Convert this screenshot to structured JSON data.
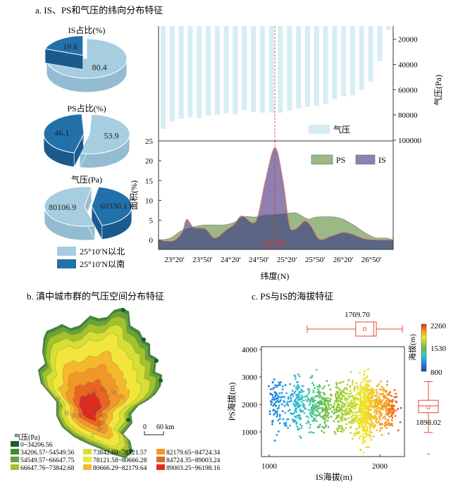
{
  "panel_a": {
    "title": "a. IS、PS和气压的纬向分布特征",
    "pies": [
      {
        "title": "IS占比(%)",
        "values": [
          80.4,
          19.6
        ],
        "labels": [
          "80.4",
          "19.6"
        ]
      },
      {
        "title": "PS占比(%)",
        "values": [
          53.9,
          46.1
        ],
        "labels": [
          "53.9",
          "46.1"
        ]
      },
      {
        "title": "气压(Pa)",
        "values": [
          80106.9,
          60330.1
        ],
        "labels": [
          "80106.9",
          "60330.1"
        ]
      }
    ],
    "pie_legend": [
      "25°10′N以北",
      "25°10′N以南"
    ],
    "colors": {
      "north": "#a6cde0",
      "south": "#2271ab",
      "pressure_bar": "#d6edf4",
      "ps": "#9cb985",
      "is": "#8e80b0",
      "overlap": "#5a6683",
      "divider": "#e8321e"
    }
  },
  "chart_data": [
    {
      "type": "bar",
      "orientation": "hanging-from-top",
      "series": [
        {
          "name": "气压",
          "values": [
            91000,
            85200,
            83100,
            81800,
            82600,
            80500,
            80000,
            78700,
            79600,
            76200,
            77700,
            78100,
            78100,
            78100,
            76400,
            74900,
            73600,
            72900,
            71400,
            67500,
            65300,
            64300,
            60200,
            53500,
            37300,
            12700
          ]
        }
      ],
      "ylabel": "气压(Pa)",
      "ylim": [
        10000,
        100000
      ],
      "yticks": [
        "20000",
        "40000",
        "60000",
        "80000",
        "100000"
      ],
      "y_axis_side": "right",
      "y_inverted": true,
      "legend_placement": "bottom-right"
    },
    {
      "type": "area",
      "xlabel": "纬度(N)",
      "ylabel": "面积(%)",
      "xlim": [
        23.1,
        27.27
      ],
      "ylim": [
        -2.5,
        25
      ],
      "xticks": [
        {
          "value": 23.333,
          "label": "23°20′"
        },
        {
          "value": 23.833,
          "label": "23°50′"
        },
        {
          "value": 24.333,
          "label": "24°20′"
        },
        {
          "value": 24.833,
          "label": "24°50′"
        },
        {
          "value": 25.333,
          "label": "25°20′"
        },
        {
          "value": 25.833,
          "label": "25°50′"
        },
        {
          "value": 26.333,
          "label": "26°20′"
        },
        {
          "value": 26.833,
          "label": "26°50′"
        }
      ],
      "yticks": [
        "0",
        "5",
        "10",
        "15",
        "20",
        "25"
      ],
      "divider": {
        "value": 25.167,
        "label": "25°10′"
      },
      "legend_placement": "top-right",
      "series": [
        {
          "name": "PS",
          "points": [
            [
              23.1,
              0
            ],
            [
              23.31,
              0.5
            ],
            [
              23.52,
              2.5
            ],
            [
              23.72,
              3.3
            ],
            [
              23.93,
              3.8
            ],
            [
              24.25,
              3.8
            ],
            [
              24.45,
              4.5
            ],
            [
              24.61,
              5.9
            ],
            [
              24.82,
              5.8
            ],
            [
              24.97,
              6.3
            ],
            [
              25.18,
              6.5
            ],
            [
              25.44,
              6.8
            ],
            [
              25.55,
              6.8
            ],
            [
              25.76,
              5.3
            ],
            [
              25.91,
              5.8
            ],
            [
              26.28,
              5.7
            ],
            [
              26.54,
              4.0
            ],
            [
              26.75,
              2.0
            ],
            [
              26.95,
              0.6
            ],
            [
              27.16,
              0.5
            ],
            [
              27.27,
              0
            ]
          ]
        },
        {
          "name": "IS",
          "points": [
            [
              23.1,
              0
            ],
            [
              23.36,
              -0.2
            ],
            [
              23.52,
              2.0
            ],
            [
              23.6,
              5.2
            ],
            [
              23.72,
              3.2
            ],
            [
              23.93,
              2.8
            ],
            [
              24.1,
              0.5
            ],
            [
              24.3,
              2.5
            ],
            [
              24.45,
              4.0
            ],
            [
              24.58,
              6.1
            ],
            [
              24.77,
              4.3
            ],
            [
              24.87,
              6.2
            ],
            [
              25.0,
              15
            ],
            [
              25.17,
              23.3
            ],
            [
              25.31,
              15
            ],
            [
              25.42,
              4.0
            ],
            [
              25.5,
              2.6
            ],
            [
              25.6,
              3.5
            ],
            [
              25.7,
              4.8
            ],
            [
              25.81,
              3.5
            ],
            [
              25.96,
              0.2
            ],
            [
              26.17,
              1.0
            ],
            [
              26.38,
              1.9
            ],
            [
              26.54,
              1.5
            ],
            [
              26.8,
              0.2
            ],
            [
              27.27,
              0
            ]
          ]
        }
      ]
    },
    {
      "type": "scatter",
      "xlabel": "IS海拔(m)",
      "ylabel": "PS海拔(m)",
      "xlim": [
        930,
        2225
      ],
      "ylim": [
        100,
        4100
      ],
      "xticks": [
        "1000",
        "2000"
      ],
      "yticks": [
        "1000",
        "2000",
        "3000",
        "4000"
      ],
      "colorbar": {
        "label": "海拔(m)",
        "ticks": [
          "2260",
          "1530",
          "800"
        ],
        "range": [
          800,
          2260
        ]
      },
      "point_clusters": [
        {
          "x": 1060,
          "x_spread": 25,
          "y_mean": 2000,
          "y_sd": 450,
          "n": 80
        },
        {
          "x": 1160,
          "x_spread": 30,
          "y_mean": 2000,
          "y_sd": 350,
          "n": 40
        },
        {
          "x": 1260,
          "x_spread": 30,
          "y_mean": 1950,
          "y_sd": 500,
          "n": 130
        },
        {
          "x": 1390,
          "x_spread": 35,
          "y_mean": 2000,
          "y_sd": 450,
          "n": 100
        },
        {
          "x": 1490,
          "x_spread": 35,
          "y_mean": 1950,
          "y_sd": 450,
          "n": 130
        },
        {
          "x": 1640,
          "x_spread": 30,
          "y_mean": 1900,
          "y_sd": 500,
          "n": 130
        },
        {
          "x": 1740,
          "x_spread": 30,
          "y_mean": 1900,
          "y_sd": 500,
          "n": 130
        },
        {
          "x": 1860,
          "x_spread": 40,
          "y_mean": 1800,
          "y_sd": 600,
          "n": 380
        },
        {
          "x": 1950,
          "x_spread": 40,
          "y_mean": 1950,
          "y_sd": 400,
          "n": 130
        },
        {
          "x": 2070,
          "x_spread": 50,
          "y_mean": 1950,
          "y_sd": 380,
          "n": 170
        }
      ],
      "boxplot_x": {
        "mean_label": "1769.70",
        "min": 1130,
        "q1": 1670,
        "median": 1870,
        "q3": 1900,
        "max": 2190,
        "mean": 1769.7
      },
      "boxplot_y": {
        "mean_label": "1898.02",
        "min": 980,
        "q1": 1700,
        "median": 1950,
        "q3": 2150,
        "max": 2830,
        "mean": 1898.02,
        "outlier": 200
      }
    }
  ],
  "panel_b": {
    "title": "b. 滇中城市群的气压空间分布特征",
    "scale_bar": {
      "start": "0",
      "end": "60 km"
    },
    "legend_title": "气压(Pa)",
    "legend": [
      {
        "label": "0~34206.56",
        "color": "#1b5e2b"
      },
      {
        "label": "34206.57~54549.56",
        "color": "#3f8a36"
      },
      {
        "label": "54549.57~66647.75",
        "color": "#6aa23a"
      },
      {
        "label": "66647.76~73842.68",
        "color": "#a2c22c"
      },
      {
        "label": "73842.69~78121.57",
        "color": "#d7de36"
      },
      {
        "label": "78121.58~80666.28",
        "color": "#f2e53c"
      },
      {
        "label": "80666.29~82179.64",
        "color": "#f6b72c"
      },
      {
        "label": "82179.65~84724.34",
        "color": "#f0972a"
      },
      {
        "label": "84724.35~89003.24",
        "color": "#e96522"
      },
      {
        "label": "89003.25~96198.16",
        "color": "#df2a1e"
      }
    ]
  },
  "panel_c": {
    "title": "c. PS与IS的海拔特征"
  }
}
